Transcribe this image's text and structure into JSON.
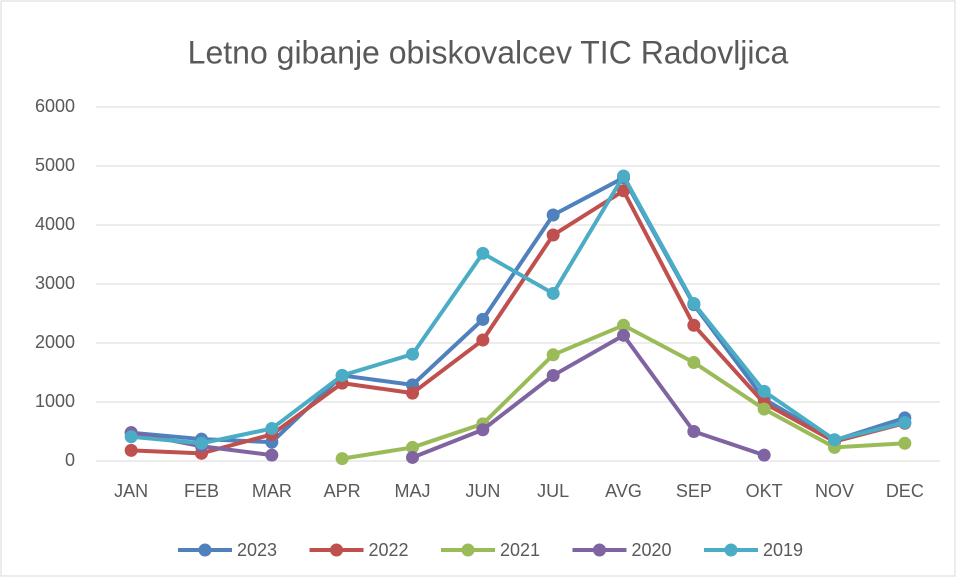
{
  "chart_data": {
    "type": "line",
    "title": "Letno gibanje obiskovalcev TIC Radovljica",
    "categories": [
      "JAN",
      "FEB",
      "MAR",
      "APR",
      "MAJ",
      "JUN",
      "JUL",
      "AVG",
      "SEP",
      "OKT",
      "NOV",
      "DEC"
    ],
    "series": [
      {
        "name": "2023",
        "color": "#4f81bd",
        "values": [
          480,
          370,
          320,
          1450,
          1290,
          2400,
          4170,
          4800,
          2650,
          1050,
          350,
          730
        ]
      },
      {
        "name": "2022",
        "color": "#c0504d",
        "values": [
          180,
          130,
          450,
          1320,
          1150,
          2050,
          3830,
          4580,
          2300,
          980,
          330,
          640
        ]
      },
      {
        "name": "2021",
        "color": "#9bbb59",
        "values": [
          null,
          null,
          null,
          40,
          230,
          630,
          1800,
          2300,
          1670,
          880,
          230,
          300
        ]
      },
      {
        "name": "2020",
        "color": "#8064a2",
        "values": [
          480,
          250,
          100,
          null,
          60,
          530,
          1450,
          2130,
          500,
          100,
          null,
          null
        ]
      },
      {
        "name": "2019",
        "color": "#4bacc6",
        "values": [
          410,
          300,
          550,
          1450,
          1810,
          3520,
          2840,
          4830,
          2670,
          1180,
          360,
          650
        ]
      }
    ],
    "ylim": [
      0,
      6000
    ],
    "yticks": [
      0,
      1000,
      2000,
      3000,
      4000,
      5000,
      6000
    ],
    "grid": true,
    "legend": "bottom"
  }
}
